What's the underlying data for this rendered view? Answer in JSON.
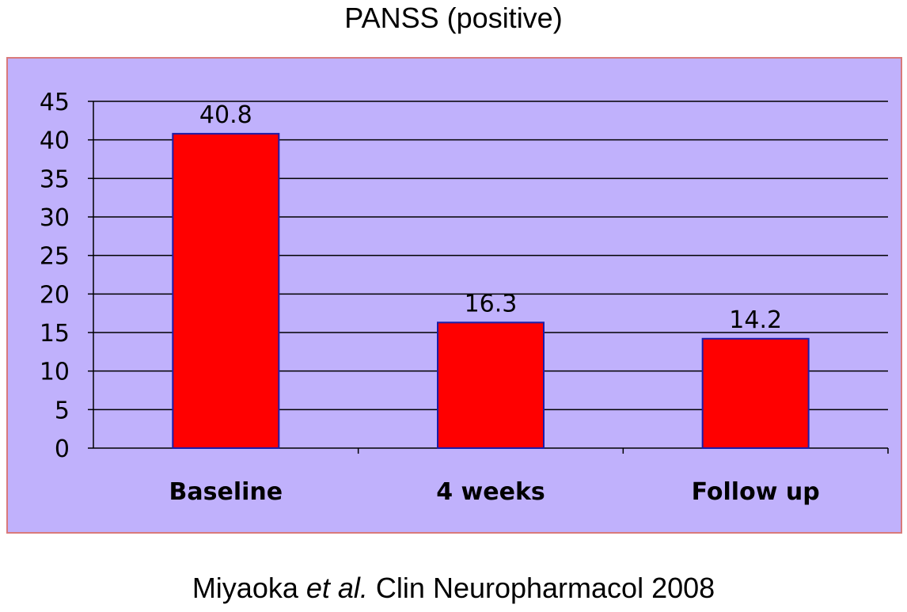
{
  "chart_data": {
    "type": "bar",
    "title": "PANSS (positive)",
    "categories": [
      "Baseline",
      "4 weeks",
      "Follow up"
    ],
    "values": [
      40.8,
      16.3,
      14.2
    ],
    "data_labels": [
      "40.8",
      "16.3",
      "14.2"
    ],
    "yticks": [
      "0",
      "5",
      "10",
      "15",
      "20",
      "25",
      "30",
      "35",
      "40",
      "45"
    ],
    "ylim": [
      0,
      45
    ],
    "grid": true,
    "colors": {
      "bar": "#ff0000",
      "bar_edge": "#1c1ca8",
      "plot_background": "#c0b1fc",
      "frame_border": "#d97a7a",
      "gridline": "#000000"
    }
  },
  "citation": {
    "prefix": "Miyaoka ",
    "italic": "et al.",
    "suffix": " Clin Neuropharmacol 2008"
  }
}
